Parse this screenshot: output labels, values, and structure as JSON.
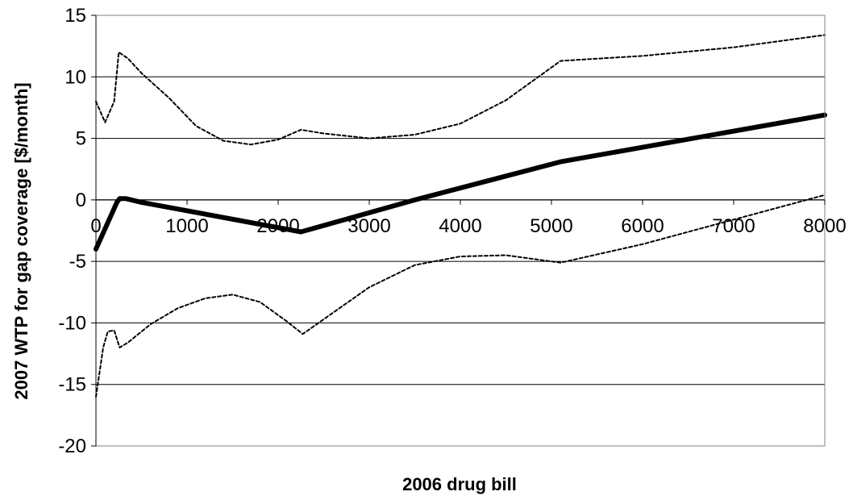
{
  "chart_data": {
    "type": "line",
    "title": "",
    "xlabel": "2006 drug bill",
    "ylabel": "2007 WTP for gap coverage [$/month]",
    "xlim": [
      0,
      8000
    ],
    "ylim": [
      -20,
      15
    ],
    "x_ticks": [
      0,
      1000,
      2000,
      3000,
      4000,
      5000,
      6000,
      7000,
      8000
    ],
    "y_ticks": [
      -20,
      -15,
      -10,
      -5,
      0,
      5,
      10,
      15
    ],
    "grid": "horizontal",
    "legend": "none",
    "series": [
      {
        "style": "solid-thick",
        "color": "#000000",
        "points": [
          [
            0,
            -4
          ],
          [
            230,
            -0.2
          ],
          [
            260,
            0.1
          ],
          [
            330,
            0.1
          ],
          [
            500,
            -0.2
          ],
          [
            2250,
            -2.6
          ],
          [
            3500,
            0
          ],
          [
            5100,
            3.1
          ],
          [
            8000,
            6.9
          ]
        ]
      },
      {
        "style": "dotted-upper",
        "color": "#000000",
        "points": [
          [
            0,
            8
          ],
          [
            100,
            6.3
          ],
          [
            200,
            8
          ],
          [
            250,
            12
          ],
          [
            350,
            11.5
          ],
          [
            500,
            10.3
          ],
          [
            800,
            8.3
          ],
          [
            1100,
            6
          ],
          [
            1400,
            4.8
          ],
          [
            1700,
            4.5
          ],
          [
            2000,
            4.9
          ],
          [
            2250,
            5.7
          ],
          [
            2500,
            5.4
          ],
          [
            3000,
            5
          ],
          [
            3500,
            5.3
          ],
          [
            4000,
            6.2
          ],
          [
            4500,
            8.1
          ],
          [
            5100,
            11.3
          ],
          [
            6000,
            11.7
          ],
          [
            7000,
            12.4
          ],
          [
            8000,
            13.4
          ]
        ]
      },
      {
        "style": "dotted-lower",
        "color": "#000000",
        "points": [
          [
            0,
            -16
          ],
          [
            80,
            -12
          ],
          [
            130,
            -10.7
          ],
          [
            200,
            -10.6
          ],
          [
            260,
            -12
          ],
          [
            350,
            -11.6
          ],
          [
            600,
            -10.1
          ],
          [
            900,
            -8.8
          ],
          [
            1200,
            -8
          ],
          [
            1500,
            -7.7
          ],
          [
            1800,
            -8.3
          ],
          [
            2100,
            -9.9
          ],
          [
            2270,
            -10.9
          ],
          [
            2500,
            -9.7
          ],
          [
            3000,
            -7.1
          ],
          [
            3500,
            -5.3
          ],
          [
            4000,
            -4.6
          ],
          [
            4500,
            -4.5
          ],
          [
            5100,
            -5.1
          ],
          [
            6000,
            -3.6
          ],
          [
            7000,
            -1.6
          ],
          [
            8000,
            0.4
          ]
        ]
      }
    ]
  }
}
